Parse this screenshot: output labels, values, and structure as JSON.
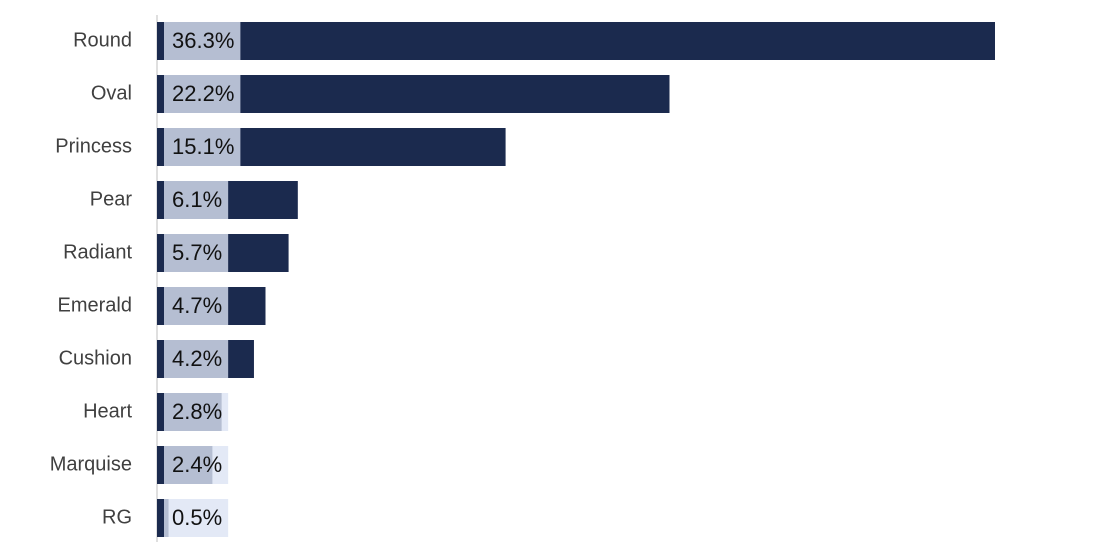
{
  "chart_data": {
    "type": "bar",
    "orientation": "horizontal",
    "color": "#1b2a4e",
    "categories": [
      "Round",
      "Oval",
      "Princess",
      "Pear",
      "Radiant",
      "Emerald",
      "Cushion",
      "Heart",
      "Marquise",
      "RG"
    ],
    "values": [
      36.3,
      22.2,
      15.1,
      6.1,
      5.7,
      4.7,
      4.2,
      2.8,
      2.4,
      0.5
    ],
    "value_labels": [
      "36.3%",
      "22.2%",
      "15.1%",
      "6.1%",
      "5.7%",
      "4.7%",
      "4.2%",
      "2.8%",
      "2.4%",
      "0.5%"
    ]
  }
}
